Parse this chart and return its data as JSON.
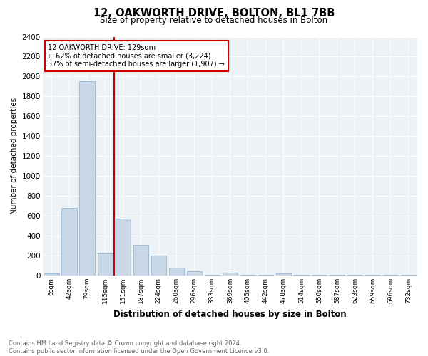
{
  "title": "12, OAKWORTH DRIVE, BOLTON, BL1 7BB",
  "subtitle": "Size of property relative to detached houses in Bolton",
  "xlabel": "Distribution of detached houses by size in Bolton",
  "ylabel": "Number of detached properties",
  "footnote": "Contains HM Land Registry data © Crown copyright and database right 2024.\nContains public sector information licensed under the Open Government Licence v3.0.",
  "bar_color": "#c8d8e8",
  "bar_edge_color": "#8ab0cc",
  "categories": [
    "6sqm",
    "42sqm",
    "79sqm",
    "115sqm",
    "151sqm",
    "187sqm",
    "224sqm",
    "260sqm",
    "296sqm",
    "333sqm",
    "369sqm",
    "405sqm",
    "442sqm",
    "478sqm",
    "514sqm",
    "550sqm",
    "587sqm",
    "623sqm",
    "659sqm",
    "696sqm",
    "732sqm"
  ],
  "values": [
    20,
    680,
    1950,
    220,
    575,
    310,
    200,
    80,
    45,
    10,
    30,
    5,
    5,
    20,
    5,
    5,
    5,
    5,
    5,
    5,
    5
  ],
  "ylim": [
    0,
    2400
  ],
  "yticks": [
    0,
    200,
    400,
    600,
    800,
    1000,
    1200,
    1400,
    1600,
    1800,
    2000,
    2200,
    2400
  ],
  "red_line_x": 3.5,
  "annotation_line1": "12 OAKWORTH DRIVE: 129sqm",
  "annotation_line2": "← 62% of detached houses are smaller (3,224)",
  "annotation_line3": "37% of semi-detached houses are larger (1,907) →",
  "red_line_color": "#cc0000",
  "annotation_box_facecolor": "#ffffff",
  "annotation_box_edgecolor": "#cc0000",
  "background_color": "#edf2f7"
}
